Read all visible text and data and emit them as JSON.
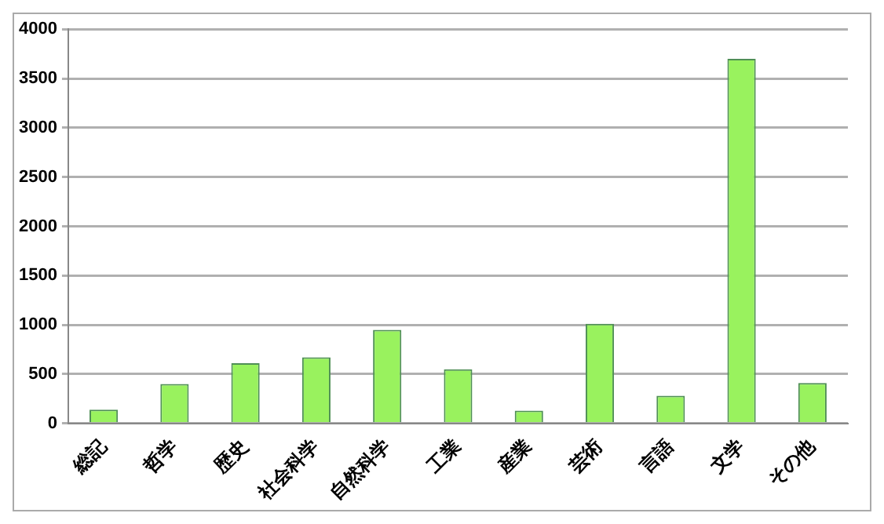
{
  "chart_data": {
    "type": "bar",
    "categories": [
      "総記",
      "哲学",
      "歴史",
      "社会科学",
      "自然科学",
      "工業",
      "産業",
      "芸術",
      "言語",
      "文学",
      "その他"
    ],
    "values": [
      140,
      400,
      610,
      670,
      950,
      550,
      130,
      1010,
      280,
      3700,
      410
    ],
    "color": "#99f25e",
    "ylim": [
      0,
      4000
    ],
    "yticks": [
      0,
      500,
      1000,
      1500,
      2000,
      2500,
      3000,
      3500,
      4000
    ],
    "grid": "y",
    "legend": false
  }
}
